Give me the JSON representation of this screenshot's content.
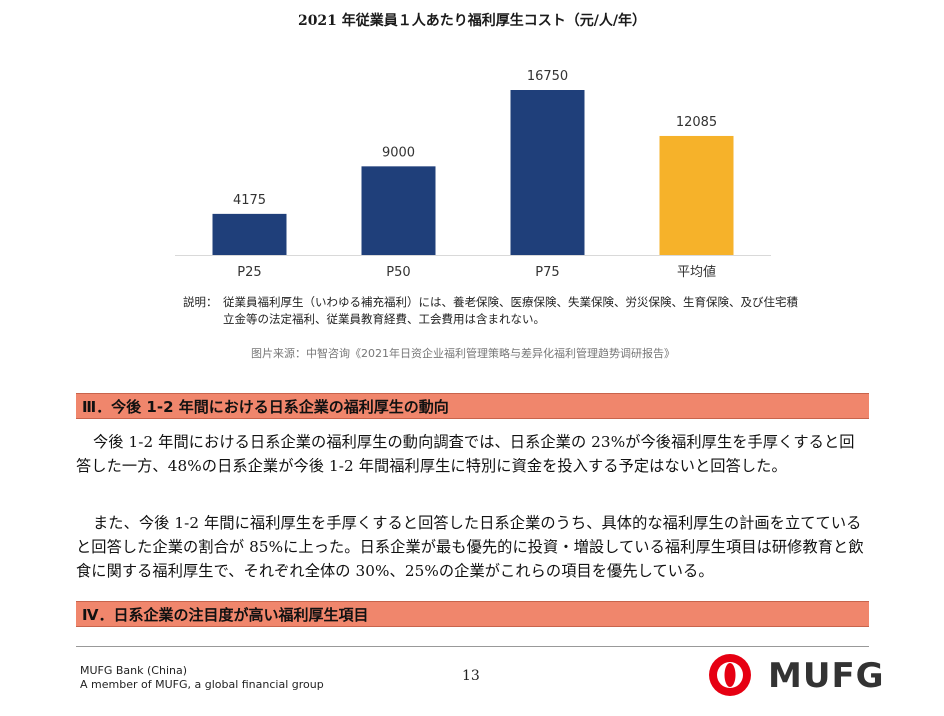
{
  "chart_data": {
    "type": "bar",
    "title": "2021 年従業員１人あたり福利厚生コスト（元/人/年）",
    "categories": [
      "P25",
      "P50",
      "P75",
      "平均値"
    ],
    "values": [
      4175,
      9000,
      16750,
      12085
    ],
    "data_labels": [
      "4175",
      "9000",
      "16750",
      "12085"
    ],
    "colors": [
      "#1f3f7a",
      "#1f3f7a",
      "#1f3f7a",
      "#f6b22a"
    ],
    "ylim": [
      0,
      16750
    ],
    "grid": false,
    "xlabel": "",
    "ylabel": ""
  },
  "note": {
    "prefix": "説明：",
    "text": "従業員福利厚生（いわゆる補充福利）には、養老保険、医療保険、失業保険、労災保険、生育保険、及び住宅積立金等の法定福利、従業員教育経費、工会費用は含まれない。"
  },
  "source": "图片来源：中智咨询《2021年日资企业福利管理策略与差异化福利管理趋势调研报告》",
  "section3": {
    "title": "Ⅲ．今後 1-2 年間における日系企業の福利厚生の動向",
    "para1": "今後 1-2 年間における日系企業の福利厚生の動向調査では、日系企業の 23%が今後福利厚生を手厚くすると回答した一方、48%の日系企業が今後 1-2 年間福利厚生に特別に資金を投入する予定はないと回答した。",
    "para2": "また、今後 1-2 年間に福利厚生を手厚くすると回答した日系企業のうち、具体的な福利厚生の計画を立てていると回答した企業の割合が 85%に上った。日系企業が最も優先的に投資・増設している福利厚生項目は研修教育と飲食に関する福利厚生で、それぞれ全体の 30%、25%の企業がこれらの項目を優先している。"
  },
  "section4": {
    "title": "Ⅳ．日系企業の注目度が高い福利厚生項目"
  },
  "footer": {
    "bank": "MUFG Bank (China)",
    "member": "A member of MUFG, a global financial group",
    "page": "13",
    "logo_text": "MUFG"
  },
  "colors": {
    "section_bar": "#f0866c",
    "logo_red": "#e60012",
    "bar_blue": "#1f3f7a",
    "bar_gold": "#f6b22a"
  }
}
